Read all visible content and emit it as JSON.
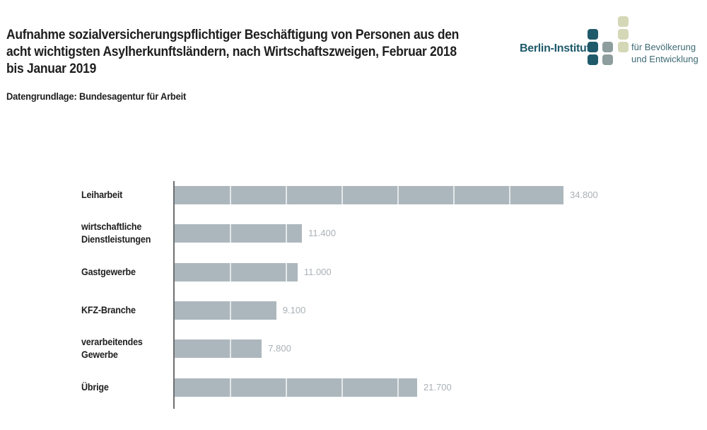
{
  "header": {
    "title": "Aufnahme sozialversicherungspflichtiger Beschäftigung von Personen aus den acht wichtigsten Asylherkunftsländern, nach Wirtschaftszweigen, Februar 2018 bis Januar 2019",
    "title_lines": [
      "Aufnahme sozialversicherungspflichtiger Beschäftigung von Personen aus den",
      "acht wichtigsten Asylherkunftsländern, nach Wirtschaftszweigen, Februar 2018",
      "bis Januar 2019"
    ],
    "subtitle": "Datengrundlage: Bundesagentur für Arbeit"
  },
  "logo": {
    "name": "Berlin-Institut",
    "tagline_1": "für Bevölkerung",
    "tagline_2": "und Entwicklung",
    "colors": {
      "dark": "#1f5a6b",
      "mid": "#8e9d9d",
      "light": "#d4d8b6"
    }
  },
  "chart_data": {
    "type": "bar",
    "orientation": "horizontal",
    "title": "Aufnahme sozialversicherungspflichtiger Beschäftigung von Personen aus den acht wichtigsten Asylherkunftsländern, nach Wirtschaftszweigen, Februar 2018 bis Januar 2019",
    "subtitle": "Datengrundlage: Bundesagentur für Arbeit",
    "categories": [
      [
        "Leiharbeit"
      ],
      [
        "wirtschaftliche",
        "Dienstleistungen"
      ],
      [
        "Gastgewerbe"
      ],
      [
        "KFZ-Branche"
      ],
      [
        "verarbeitendes",
        "Gewerbe"
      ],
      [
        "Übrige"
      ]
    ],
    "values": [
      34800,
      11400,
      11000,
      9100,
      7800,
      21700
    ],
    "value_labels": [
      "34.800",
      "11.400",
      "11.000",
      "9.100",
      "7.800",
      "21.700"
    ],
    "xlim": [
      0,
      35000
    ],
    "gridline_step": 5000,
    "xlabel": "",
    "ylabel": "",
    "grid": true,
    "legend": "none",
    "bar_color": "#acb7bd",
    "value_label_color": "#a9b1b6"
  }
}
